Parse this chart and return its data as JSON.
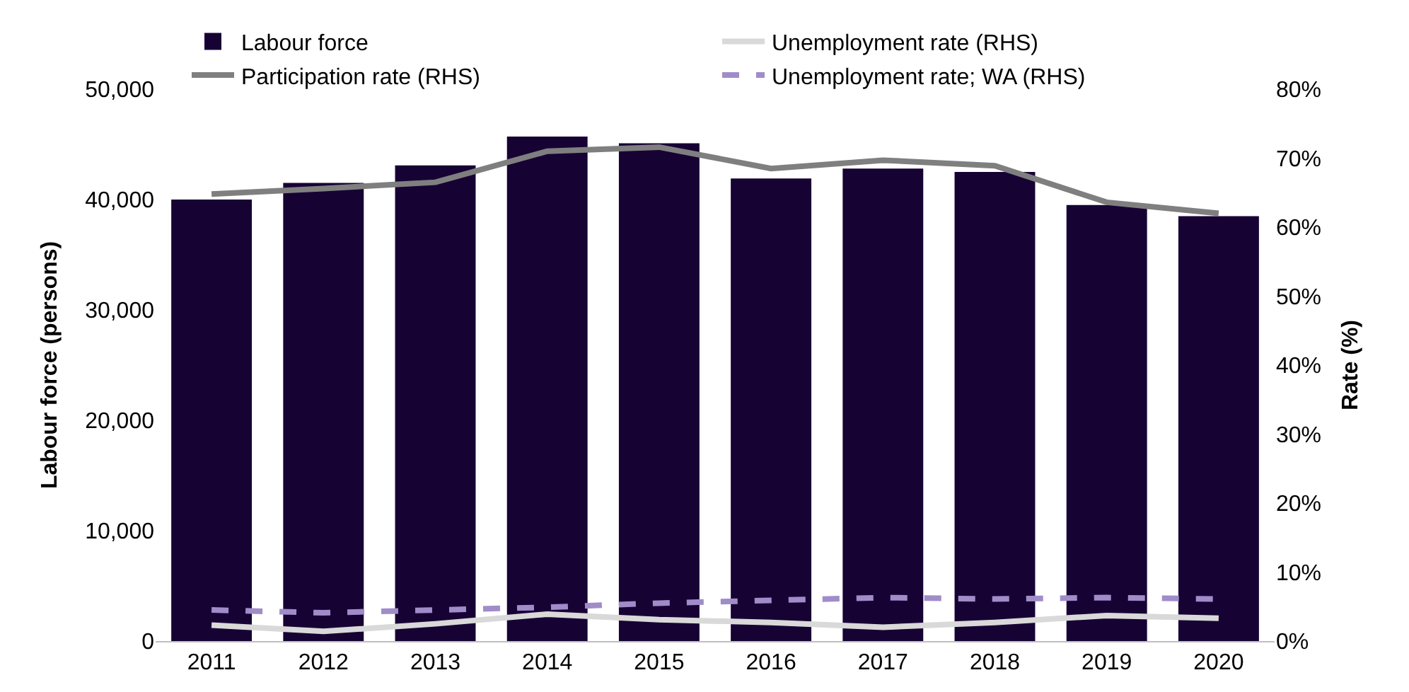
{
  "chart_data": {
    "type": "bar",
    "ylabel": "Labour force (persons)",
    "y2label": "Rate (%)",
    "categories": [
      "2011",
      "2012",
      "2013",
      "2014",
      "2015",
      "2016",
      "2017",
      "2018",
      "2019",
      "2020"
    ],
    "series": [
      {
        "name": "Labour force",
        "color": "#170234",
        "values": [
          40000,
          41500,
          43100,
          45700,
          45100,
          41900,
          42800,
          42500,
          39500,
          38500
        ]
      },
      {
        "name": "Unemployment rate (RHS)",
        "type": "line",
        "axis": "y2",
        "color": "#d9d9d9",
        "line_style": "solid",
        "values": [
          2.3,
          1.4,
          2.5,
          3.9,
          3.1,
          2.7,
          2.0,
          2.7,
          3.7,
          3.3
        ]
      },
      {
        "name": "Participation rate (RHS)",
        "type": "line",
        "axis": "y2",
        "color": "#7f7f7f",
        "line_style": "solid",
        "values": [
          64.8,
          65.6,
          66.5,
          71.0,
          71.6,
          68.5,
          69.7,
          68.9,
          63.6,
          62.0
        ]
      },
      {
        "name": "Unemployment rate; WA (RHS)",
        "type": "line",
        "axis": "y2",
        "color": "#a08cc8",
        "line_style": "dashed",
        "values": [
          4.5,
          4.1,
          4.5,
          4.9,
          5.5,
          5.9,
          6.3,
          6.1,
          6.3,
          6.1
        ]
      }
    ],
    "ylim": [
      0,
      50000
    ],
    "yticks": [
      0,
      {
        "value": 10000,
        "label": "10,000"
      },
      {
        "value": 20000,
        "label": "20,000"
      },
      {
        "value": 30000,
        "label": "30,000"
      },
      {
        "value": 40000,
        "label": "40,000"
      },
      {
        "value": 50000,
        "label": "50,000"
      }
    ],
    "y2lim": [
      0,
      80
    ],
    "y2ticks": [
      {
        "value": 0,
        "label": "0%"
      },
      {
        "value": 10,
        "label": "10%"
      },
      {
        "value": 20,
        "label": "20%"
      },
      {
        "value": 30,
        "label": "30%"
      },
      {
        "value": 40,
        "label": "40%"
      },
      {
        "value": 50,
        "label": "50%"
      },
      {
        "value": 60,
        "label": "60%"
      },
      {
        "value": 70,
        "label": "70%"
      },
      {
        "value": 80,
        "label": "80%"
      }
    ],
    "legend": "top"
  }
}
